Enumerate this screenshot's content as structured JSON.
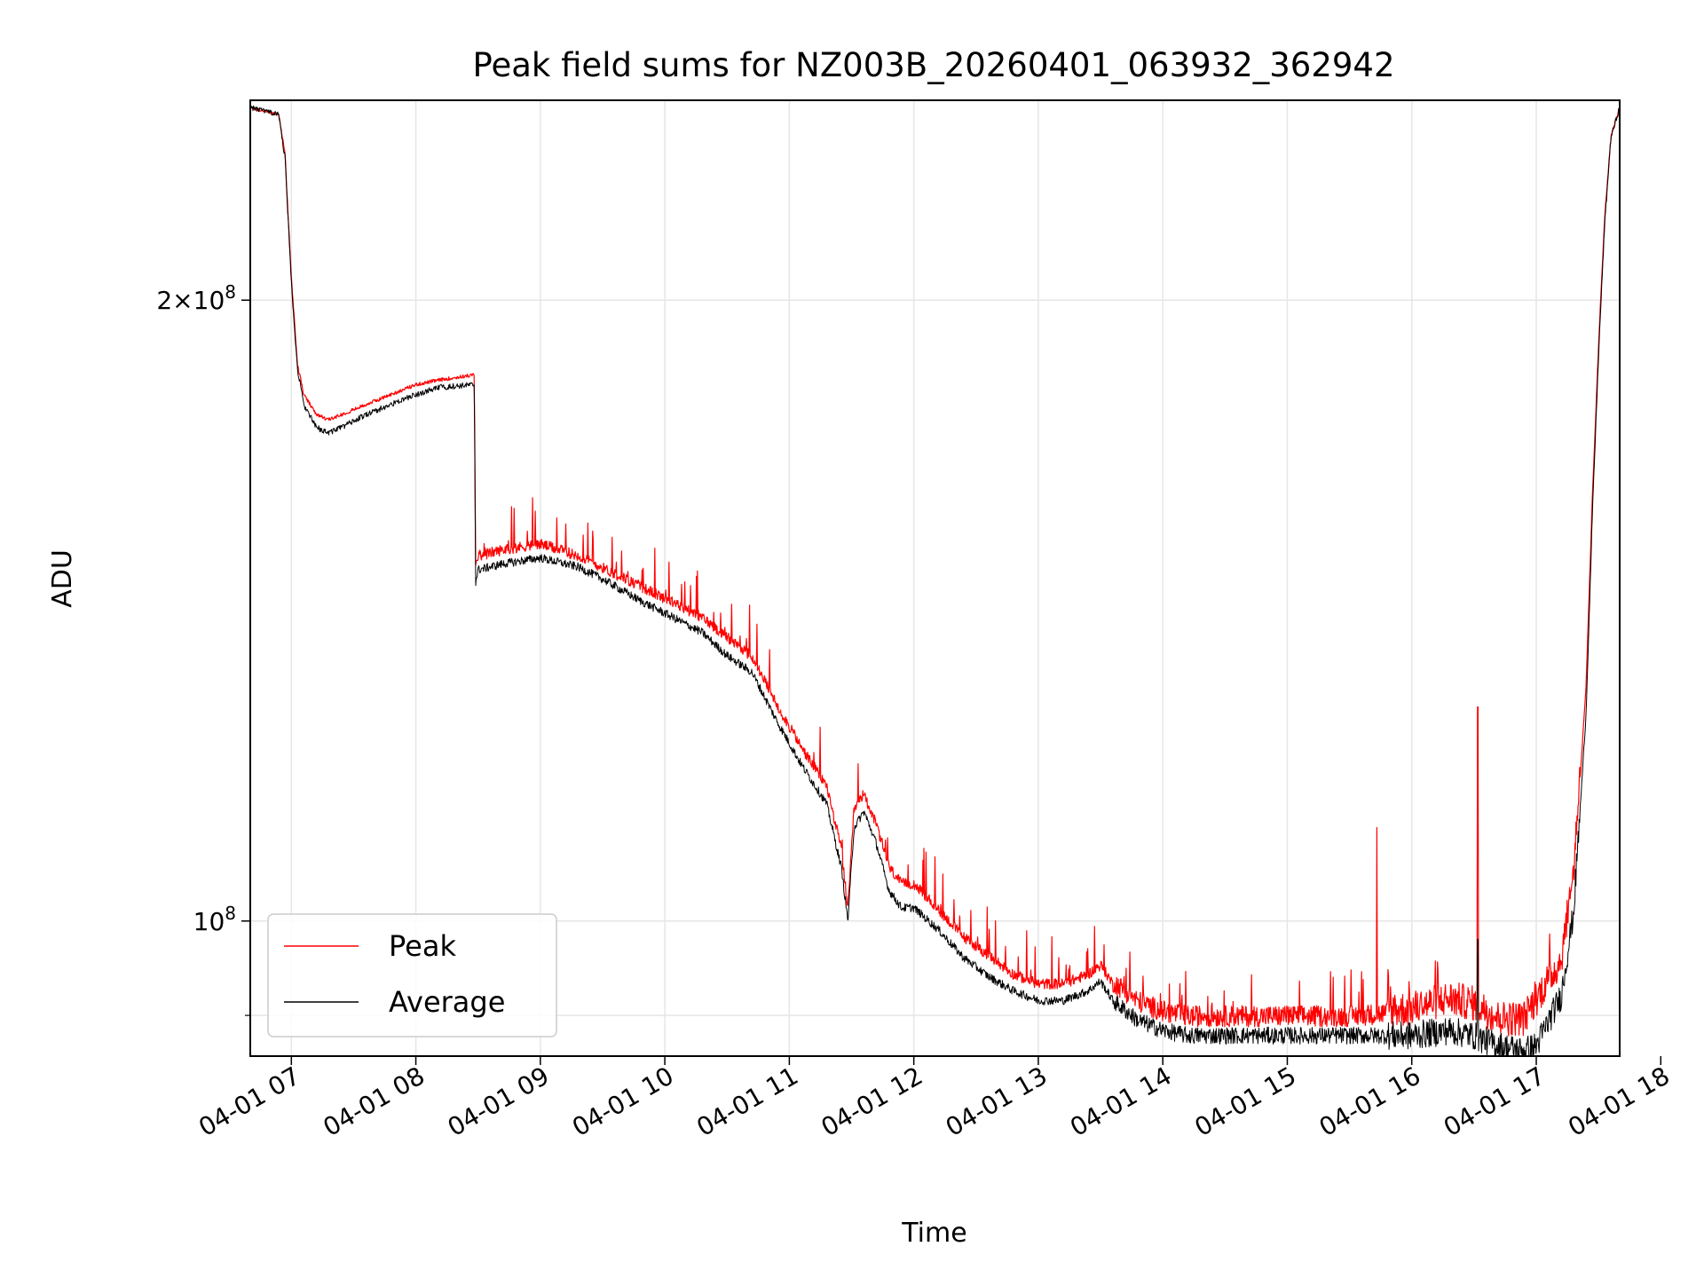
{
  "chart_data": {
    "type": "line",
    "title": "Peak field sums for NZ003B_20260401_063932_362942",
    "xlabel": "Time",
    "ylabel": "ADU",
    "yscale": "log",
    "xlim": [
      6.67,
      17.67
    ],
    "ylim": [
      86000000,
      250000000
    ],
    "grid": true,
    "legend_loc": "lower-left",
    "x_ticks": [
      {
        "value": 7,
        "label": "04-01 07"
      },
      {
        "value": 8,
        "label": "04-01 08"
      },
      {
        "value": 9,
        "label": "04-01 09"
      },
      {
        "value": 10,
        "label": "04-01 10"
      },
      {
        "value": 11,
        "label": "04-01 11"
      },
      {
        "value": 12,
        "label": "04-01 12"
      },
      {
        "value": 13,
        "label": "04-01 13"
      },
      {
        "value": 14,
        "label": "04-01 14"
      },
      {
        "value": 15,
        "label": "04-01 15"
      },
      {
        "value": 16,
        "label": "04-01 16"
      },
      {
        "value": 17,
        "label": "04-01 17"
      },
      {
        "value": 18,
        "label": "04-01 18"
      }
    ],
    "y_ticks": [
      {
        "value": 200000000,
        "mant": "2",
        "exp": "8"
      },
      {
        "value": 100000000,
        "mant": "",
        "exp": "8"
      }
    ],
    "y_minor_ticks": [
      90000000
    ],
    "x_unit_note": "hours of day on 2026-04-01",
    "series": [
      {
        "name": "Peak",
        "color": "#ff0000",
        "x": [
          6.67,
          6.9,
          6.95,
          7.0,
          7.05,
          7.1,
          7.2,
          7.3,
          7.4,
          7.6,
          7.8,
          8.0,
          8.2,
          8.47,
          8.48,
          8.5,
          8.7,
          9.0,
          9.3,
          9.5,
          9.8,
          10.0,
          10.3,
          10.5,
          10.7,
          10.9,
          11.1,
          11.3,
          11.42,
          11.47,
          11.52,
          11.6,
          11.7,
          11.8,
          11.9,
          12.0,
          12.2,
          12.4,
          12.6,
          12.8,
          13.0,
          13.2,
          13.4,
          13.5,
          13.6,
          13.8,
          14.0,
          14.2,
          14.5,
          15.0,
          15.5,
          16.0,
          16.3,
          16.5,
          16.7,
          16.9,
          17.0,
          17.2,
          17.3,
          17.4,
          17.45,
          17.5,
          17.55,
          17.6,
          17.67
        ],
        "values": [
          248000000,
          246000000,
          235000000,
          205000000,
          186000000,
          180000000,
          176000000,
          175000000,
          176000000,
          178000000,
          180000000,
          182000000,
          183000000,
          184000000,
          149000000,
          150000000,
          151000000,
          152000000,
          150000000,
          148000000,
          145000000,
          143000000,
          140000000,
          137000000,
          134000000,
          127000000,
          121000000,
          116000000,
          108000000,
          101000000,
          113000000,
          115000000,
          111000000,
          106000000,
          104000000,
          104000000,
          101000000,
          98000000,
          96000000,
          94000000,
          93000000,
          93000000,
          94000000,
          95000000,
          93000000,
          91000000,
          90000000,
          89500000,
          89500000,
          89500000,
          89500000,
          90000000,
          91000000,
          90500000,
          89000000,
          89000000,
          91000000,
          95000000,
          105000000,
          130000000,
          160000000,
          190000000,
          220000000,
          240000000,
          248000000
        ]
      },
      {
        "name": "Average",
        "color": "#000000",
        "x": [
          6.67,
          6.9,
          6.95,
          7.0,
          7.05,
          7.1,
          7.2,
          7.3,
          7.4,
          7.6,
          7.8,
          8.0,
          8.2,
          8.47,
          8.48,
          8.5,
          8.7,
          9.0,
          9.3,
          9.5,
          9.8,
          10.0,
          10.3,
          10.5,
          10.7,
          10.9,
          11.1,
          11.3,
          11.42,
          11.47,
          11.52,
          11.6,
          11.7,
          11.8,
          11.9,
          12.0,
          12.2,
          12.4,
          12.6,
          12.8,
          13.0,
          13.2,
          13.4,
          13.5,
          13.6,
          13.8,
          14.0,
          14.2,
          14.5,
          15.0,
          15.5,
          16.0,
          16.3,
          16.5,
          16.7,
          16.9,
          17.0,
          17.2,
          17.3,
          17.4,
          17.45,
          17.5,
          17.55,
          17.6,
          17.67
        ],
        "values": [
          248000000,
          246000000,
          234000000,
          204000000,
          185000000,
          178000000,
          173500000,
          172500000,
          173500000,
          176000000,
          178000000,
          180000000,
          181500000,
          182000000,
          146000000,
          148000000,
          149000000,
          150000000,
          148500000,
          146500000,
          143000000,
          141000000,
          138000000,
          134500000,
          132000000,
          125000000,
          119000000,
          114000000,
          106000000,
          100000000,
          111000000,
          113000000,
          109000000,
          103500000,
          101500000,
          101500000,
          99000000,
          96000000,
          94000000,
          92500000,
          91500000,
          91500000,
          92500000,
          93500000,
          91500000,
          89500000,
          88500000,
          88000000,
          88000000,
          88000000,
          88000000,
          88000000,
          88500000,
          88000000,
          87000000,
          86500000,
          87000000,
          92000000,
          101000000,
          126000000,
          157000000,
          188000000,
          218000000,
          240000000,
          248000000
        ]
      }
    ]
  }
}
